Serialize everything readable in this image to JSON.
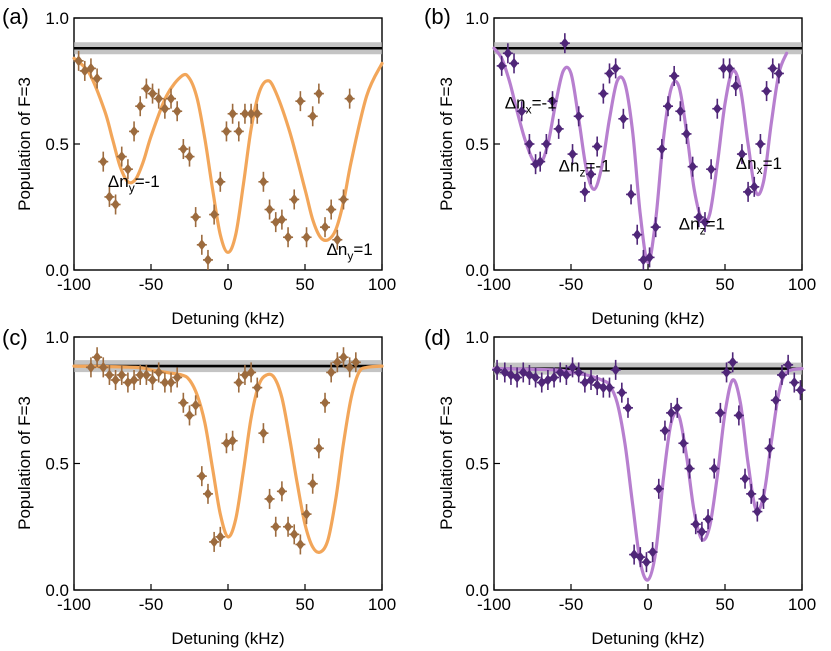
{
  "figure": {
    "xlabel": "Detuning (kHz)",
    "ylabel": "Population of F=3",
    "x_ticks": [
      "-100",
      "-50",
      "0",
      "50",
      "100"
    ],
    "y_ticks": [
      "0.0",
      "0.5",
      "1.0"
    ],
    "colors": {
      "orange_line": "#f2a65a",
      "orange_points": "#9c6b3e",
      "purple_line": "#b77fcf",
      "purple_points": "#4f2678",
      "reference_line": "#000000",
      "reference_band": "#b0b0b0"
    }
  },
  "chart_data": [
    {
      "panel": "(a)",
      "type": "scatter",
      "xlim": [
        -100,
        100
      ],
      "ylim": [
        0,
        1
      ],
      "reference_level": 0.88,
      "points": {
        "x": [
          -97,
          -93,
          -89,
          -85,
          -81,
          -77,
          -73,
          -69,
          -65,
          -61,
          -57,
          -53,
          -49,
          -45,
          -41,
          -37,
          -33,
          -29,
          -25,
          -21,
          -17,
          -13,
          -9,
          -5,
          -1,
          3,
          7,
          11,
          15,
          19,
          23,
          27,
          31,
          35,
          39,
          43,
          47,
          51,
          55,
          59,
          63,
          67,
          71,
          75,
          79
        ],
        "y": [
          0.83,
          0.79,
          0.8,
          0.76,
          0.43,
          0.29,
          0.26,
          0.45,
          0.4,
          0.55,
          0.65,
          0.72,
          0.7,
          0.68,
          0.64,
          0.68,
          0.63,
          0.48,
          0.45,
          0.21,
          0.1,
          0.04,
          0.22,
          0.35,
          0.55,
          0.62,
          0.55,
          0.62,
          0.62,
          0.62,
          0.35,
          0.24,
          0.19,
          0.2,
          0.13,
          0.28,
          0.67,
          0.13,
          0.61,
          0.7,
          0.17,
          0.24,
          0.12,
          0.28,
          0.68
        ]
      },
      "fit": {
        "x": [
          -100,
          -90,
          -80,
          -75,
          -70,
          -65,
          -60,
          -55,
          -50,
          -40,
          -30,
          -25,
          -20,
          -15,
          -10,
          -5,
          0,
          5,
          10,
          15,
          20,
          25,
          30,
          40,
          50,
          55,
          60,
          65,
          70,
          75,
          80,
          90,
          100
        ],
        "y": [
          0.84,
          0.78,
          0.63,
          0.52,
          0.41,
          0.35,
          0.36,
          0.43,
          0.53,
          0.69,
          0.77,
          0.76,
          0.68,
          0.52,
          0.32,
          0.14,
          0.07,
          0.14,
          0.34,
          0.56,
          0.7,
          0.75,
          0.72,
          0.55,
          0.32,
          0.2,
          0.13,
          0.12,
          0.16,
          0.27,
          0.43,
          0.69,
          0.82
        ]
      },
      "annotations": [
        {
          "text": "Δn",
          "sub": "y",
          "suffix": "=-1",
          "x": -78,
          "y": 0.33
        },
        {
          "text": "Δn",
          "sub": "y",
          "suffix": "=1",
          "x": 64,
          "y": 0.06
        }
      ]
    },
    {
      "panel": "(b)",
      "type": "scatter",
      "xlim": [
        -100,
        100
      ],
      "ylim": [
        0,
        1
      ],
      "reference_level": 0.88,
      "points": {
        "x": [
          -95,
          -91,
          -87,
          -82,
          -77,
          -73,
          -70,
          -66,
          -62,
          -58,
          -54,
          -49,
          -45,
          -41,
          -37,
          -33,
          -29,
          -25,
          -21,
          -16,
          -11,
          -7,
          -3,
          1,
          5,
          9,
          13,
          17,
          21,
          25,
          29,
          33,
          37,
          41,
          45,
          49,
          53,
          57,
          61,
          65,
          69,
          73,
          77,
          81,
          85
        ],
        "y": [
          0.81,
          0.86,
          0.82,
          0.63,
          0.5,
          0.42,
          0.43,
          0.5,
          0.67,
          0.56,
          0.9,
          0.46,
          0.61,
          0.31,
          0.38,
          0.49,
          0.7,
          0.78,
          0.8,
          0.6,
          0.3,
          0.14,
          0.04,
          0.05,
          0.17,
          0.48,
          0.65,
          0.77,
          0.63,
          0.54,
          0.41,
          0.21,
          0.19,
          0.4,
          0.64,
          0.8,
          0.8,
          0.73,
          0.46,
          0.31,
          0.33,
          0.5,
          0.71,
          0.8,
          0.78
        ]
      },
      "fit": {
        "x": [
          -100,
          -95,
          -90,
          -85,
          -80,
          -75,
          -70,
          -65,
          -60,
          -55,
          -50,
          -45,
          -40,
          -35,
          -30,
          -25,
          -20,
          -15,
          -10,
          -5,
          0,
          5,
          10,
          15,
          20,
          25,
          30,
          35,
          40,
          45,
          50,
          55,
          60,
          65,
          70,
          75,
          80,
          85,
          90
        ],
        "y": [
          0.88,
          0.84,
          0.75,
          0.63,
          0.52,
          0.44,
          0.42,
          0.5,
          0.66,
          0.79,
          0.78,
          0.6,
          0.4,
          0.32,
          0.41,
          0.6,
          0.75,
          0.74,
          0.55,
          0.22,
          0.03,
          0.2,
          0.52,
          0.72,
          0.73,
          0.55,
          0.32,
          0.2,
          0.22,
          0.42,
          0.66,
          0.79,
          0.72,
          0.5,
          0.31,
          0.35,
          0.58,
          0.78,
          0.86
        ]
      },
      "annotations": [
        {
          "text": "Δn",
          "sub": "x",
          "suffix": "=-1",
          "x": -93,
          "y": 0.64
        },
        {
          "text": "Δn",
          "sub": "z",
          "suffix": "=-1",
          "x": -58,
          "y": 0.39
        },
        {
          "text": "Δn",
          "sub": "z",
          "suffix": "=1",
          "x": 20,
          "y": 0.16
        },
        {
          "text": "Δn",
          "sub": "x",
          "suffix": "=1",
          "x": 57,
          "y": 0.4
        }
      ]
    },
    {
      "panel": "(c)",
      "type": "scatter",
      "xlim": [
        -100,
        100
      ],
      "ylim": [
        0,
        1
      ],
      "reference_level": 0.885,
      "points": {
        "x": [
          -89,
          -85,
          -81,
          -77,
          -73,
          -69,
          -65,
          -61,
          -57,
          -53,
          -49,
          -45,
          -41,
          -37,
          -33,
          -29,
          -25,
          -21,
          -17,
          -13,
          -9,
          -5,
          -1,
          3,
          7,
          11,
          15,
          19,
          23,
          27,
          31,
          35,
          39,
          43,
          47,
          51,
          55,
          59,
          63,
          67,
          71,
          75,
          79,
          83
        ],
        "y": [
          0.88,
          0.92,
          0.88,
          0.85,
          0.83,
          0.85,
          0.82,
          0.83,
          0.85,
          0.85,
          0.83,
          0.86,
          0.82,
          0.82,
          0.84,
          0.74,
          0.69,
          0.73,
          0.45,
          0.38,
          0.19,
          0.21,
          0.58,
          0.59,
          0.82,
          0.85,
          0.86,
          0.8,
          0.62,
          0.36,
          0.25,
          0.39,
          0.25,
          0.22,
          0.18,
          0.3,
          0.42,
          0.56,
          0.74,
          0.86,
          0.9,
          0.92,
          0.88,
          0.9
        ]
      },
      "fit": {
        "x": [
          -100,
          -60,
          -50,
          -40,
          -30,
          -25,
          -20,
          -15,
          -10,
          -5,
          0,
          5,
          10,
          15,
          20,
          25,
          30,
          35,
          40,
          45,
          50,
          55,
          60,
          65,
          70,
          75,
          80,
          85,
          90,
          100
        ],
        "y": [
          0.885,
          0.88,
          0.87,
          0.86,
          0.85,
          0.83,
          0.77,
          0.66,
          0.48,
          0.3,
          0.21,
          0.28,
          0.47,
          0.68,
          0.81,
          0.85,
          0.84,
          0.76,
          0.6,
          0.42,
          0.26,
          0.17,
          0.15,
          0.2,
          0.36,
          0.58,
          0.76,
          0.86,
          0.88,
          0.885
        ]
      },
      "annotations": []
    },
    {
      "panel": "(d)",
      "type": "scatter",
      "xlim": [
        -100,
        100
      ],
      "ylim": [
        0,
        1
      ],
      "reference_level": 0.875,
      "points": {
        "x": [
          -98,
          -93,
          -89,
          -85,
          -81,
          -77,
          -73,
          -69,
          -65,
          -61,
          -57,
          -53,
          -49,
          -45,
          -41,
          -37,
          -33,
          -29,
          -25,
          -21,
          -17,
          -13,
          -9,
          -5,
          -1,
          3,
          7,
          11,
          15,
          19,
          23,
          27,
          31,
          35,
          39,
          43,
          47,
          51,
          55,
          59,
          63,
          67,
          71,
          75,
          79,
          83,
          87,
          91,
          95,
          99
        ],
        "y": [
          0.87,
          0.86,
          0.85,
          0.84,
          0.86,
          0.85,
          0.84,
          0.82,
          0.83,
          0.84,
          0.86,
          0.85,
          0.88,
          0.86,
          0.82,
          0.83,
          0.81,
          0.8,
          0.8,
          0.87,
          0.78,
          0.72,
          0.14,
          0.13,
          0.11,
          0.15,
          0.4,
          0.63,
          0.7,
          0.72,
          0.58,
          0.48,
          0.26,
          0.23,
          0.28,
          0.48,
          0.7,
          0.86,
          0.9,
          0.69,
          0.44,
          0.38,
          0.31,
          0.36,
          0.56,
          0.75,
          0.85,
          0.89,
          0.82,
          0.79
        ]
      },
      "fit": {
        "x": [
          -100,
          -60,
          -50,
          -40,
          -30,
          -25,
          -20,
          -15,
          -10,
          -5,
          0,
          5,
          10,
          15,
          20,
          25,
          30,
          35,
          40,
          45,
          50,
          55,
          60,
          65,
          70,
          75,
          80,
          85,
          90,
          100
        ],
        "y": [
          0.875,
          0.87,
          0.86,
          0.85,
          0.83,
          0.81,
          0.74,
          0.58,
          0.34,
          0.11,
          0.04,
          0.15,
          0.44,
          0.66,
          0.69,
          0.53,
          0.31,
          0.2,
          0.25,
          0.45,
          0.7,
          0.83,
          0.74,
          0.5,
          0.32,
          0.37,
          0.58,
          0.78,
          0.86,
          0.875
        ]
      },
      "annotations": []
    }
  ]
}
